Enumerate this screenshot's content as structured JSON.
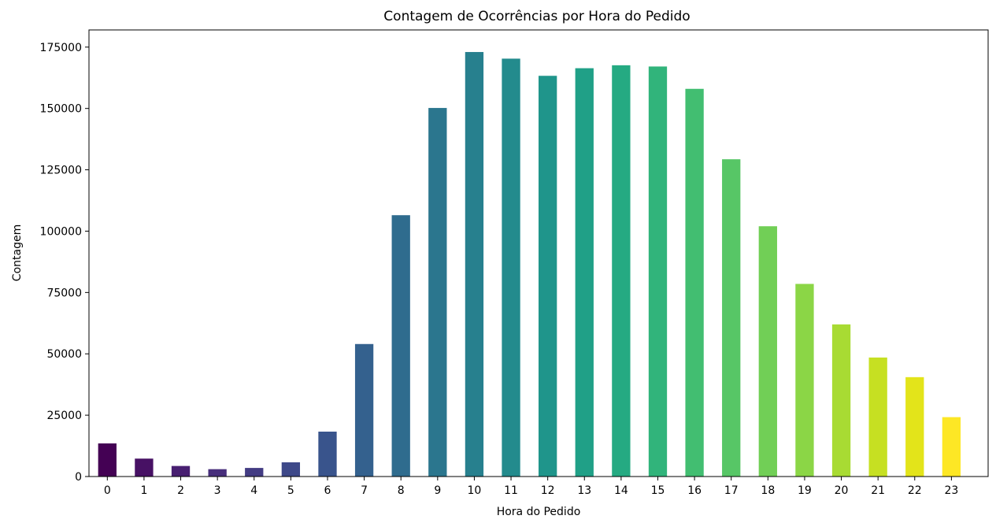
{
  "chart_data": {
    "type": "bar",
    "title": "Contagem de Ocorrências por Hora do Pedido",
    "xlabel": "Hora do Pedido",
    "ylabel": "Contagem",
    "categories": [
      "0",
      "1",
      "2",
      "3",
      "4",
      "5",
      "6",
      "7",
      "8",
      "9",
      "10",
      "11",
      "12",
      "13",
      "14",
      "15",
      "16",
      "17",
      "18",
      "19",
      "20",
      "21",
      "22",
      "23"
    ],
    "values": [
      13500,
      7300,
      4300,
      3000,
      3500,
      5800,
      18300,
      54000,
      106500,
      150200,
      173000,
      170300,
      163300,
      166400,
      167600,
      167100,
      158000,
      129300,
      102000,
      78500,
      62000,
      48500,
      40500,
      24200
    ],
    "ylim": [
      0,
      182000
    ],
    "yticks": [
      0,
      25000,
      50000,
      75000,
      100000,
      125000,
      150000,
      175000
    ],
    "ytick_labels": [
      "0",
      "25000",
      "50000",
      "75000",
      "100000",
      "125000",
      "150000",
      "175000"
    ],
    "colors": [
      "#440154",
      "#481467",
      "#482576",
      "#453781",
      "#3f4788",
      "#39558c",
      "#32648e",
      "#2d718e",
      "#287d8e",
      "#238a8d",
      "#1f968b",
      "#20a386",
      "#29af7f",
      "#3dbc74",
      "#56c667",
      "#75d054",
      "#95d840",
      "#bade28",
      "#dde318",
      "#fde725"
    ],
    "colormap": "viridis",
    "grid": false,
    "legend": "none"
  }
}
